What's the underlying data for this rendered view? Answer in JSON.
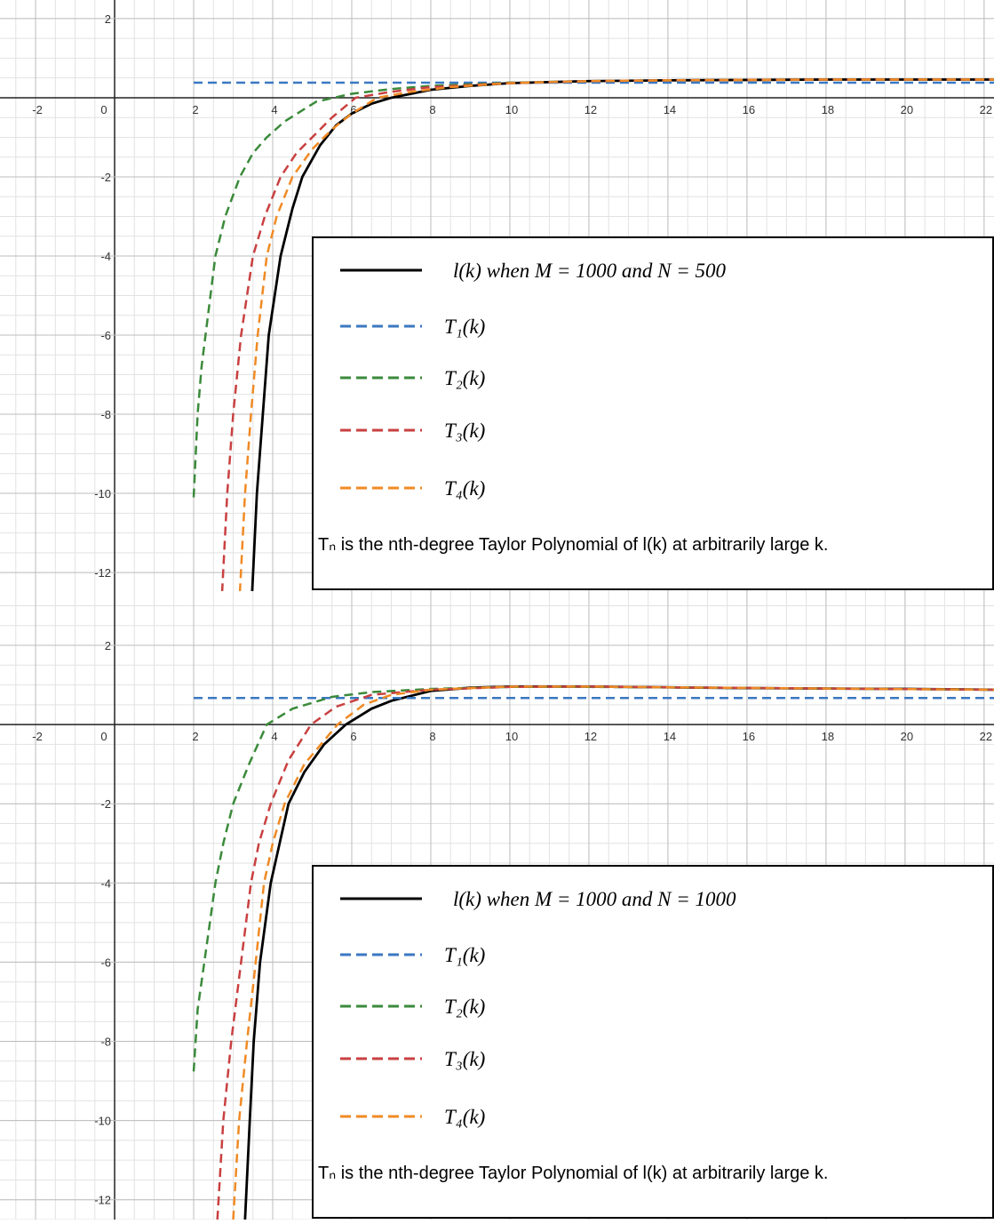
{
  "chart_data": [
    {
      "type": "line",
      "xlim": [
        -2.9,
        22.25
      ],
      "ylim": [
        -12.47,
        2.47
      ],
      "xticks": [
        -2,
        0,
        2,
        4,
        6,
        8,
        10,
        12,
        14,
        16,
        18,
        20,
        22
      ],
      "yticks": [
        -12,
        -10,
        -8,
        -6,
        -4,
        -2,
        0,
        2
      ],
      "grid": true,
      "minor_grid_step": 0.5,
      "legend": "lower right",
      "note": "Tₙ is the nth-degree Taylor Polynomial of l(k) at arbitrarily large k.",
      "series": [
        {
          "name": "l(k) when M = 1000 and N = 500",
          "color": "#000000",
          "dashed": false,
          "x": [
            3.48,
            3.6,
            3.75,
            3.9,
            4.2,
            4.5,
            4.75,
            5.2,
            5.6,
            6,
            6.5,
            7,
            8,
            9,
            10,
            12,
            14,
            16,
            18,
            20,
            22.3
          ],
          "values": [
            -12.5,
            -10,
            -8,
            -6,
            -4,
            -2.8,
            -2,
            -1.2,
            -0.7,
            -0.4,
            -0.15,
            0,
            0.2,
            0.3,
            0.37,
            0.42,
            0.44,
            0.45,
            0.46,
            0.46,
            0.46
          ]
        },
        {
          "name": "T₁(k)",
          "color": "#3a78c2",
          "dashed": true,
          "x": [
            2,
            22.3
          ],
          "values": [
            0.38,
            0.38
          ]
        },
        {
          "name": "T₂(k)",
          "color": "#3a8a3a",
          "dashed": true,
          "x": [
            2,
            2.1,
            2.2,
            2.3,
            2.55,
            2.8,
            3.17,
            3.5,
            3.85,
            4.3,
            5.1,
            6,
            7,
            8,
            10,
            12,
            14,
            18,
            22.3
          ],
          "values": [
            -10.1,
            -8,
            -6.8,
            -6,
            -4,
            -3,
            -2,
            -1.4,
            -1,
            -0.6,
            -0.1,
            0.1,
            0.22,
            0.3,
            0.38,
            0.42,
            0.44,
            0.46,
            0.46
          ]
        },
        {
          "name": "T₃(k)",
          "color": "#c94040",
          "dashed": true,
          "x": [
            2.72,
            2.85,
            3.0,
            3.2,
            3.5,
            3.8,
            4.2,
            4.6,
            5,
            5.5,
            6.1,
            7,
            8,
            10,
            12,
            14,
            18,
            22.3
          ],
          "values": [
            -12.5,
            -10,
            -8,
            -6,
            -4,
            -3,
            -2,
            -1.4,
            -1,
            -0.5,
            0,
            0.15,
            0.27,
            0.37,
            0.42,
            0.44,
            0.46,
            0.46
          ]
        },
        {
          "name": "T₄(k)",
          "color": "#f08a24",
          "dashed": true,
          "x": [
            3.17,
            3.3,
            3.45,
            3.62,
            3.85,
            4.1,
            4.5,
            5,
            5.5,
            6,
            6.65,
            7.5,
            8.5,
            10,
            12,
            14,
            18,
            22.3
          ],
          "values": [
            -12.5,
            -10,
            -8,
            -6,
            -4,
            -3,
            -2,
            -1.3,
            -0.8,
            -0.4,
            0,
            0.15,
            0.27,
            0.37,
            0.42,
            0.44,
            0.46,
            0.46
          ]
        }
      ]
    },
    {
      "type": "line",
      "xlim": [
        -2.9,
        22.25
      ],
      "ylim": [
        -12.5,
        3.37
      ],
      "xticks": [
        -2,
        0,
        2,
        4,
        6,
        8,
        10,
        12,
        14,
        16,
        18,
        20,
        22
      ],
      "yticks": [
        -12,
        -10,
        -8,
        -6,
        -4,
        -2,
        0,
        2
      ],
      "grid": true,
      "minor_grid_step": 0.5,
      "legend": "lower right",
      "note": "Tₙ is the nth-degree Taylor Polynomial of l(k) at arbitrarily large k.",
      "series": [
        {
          "name": "l(k) when M = 1000 and N = 1000",
          "color": "#000000",
          "dashed": false,
          "x": [
            3.3,
            3.42,
            3.52,
            3.68,
            3.95,
            4.4,
            4.8,
            5.3,
            5.85,
            6.5,
            7,
            8,
            9,
            10,
            12,
            14,
            16,
            18,
            20,
            22.3
          ],
          "values": [
            -12.5,
            -10,
            -8,
            -6,
            -4,
            -2,
            -1.2,
            -0.5,
            0,
            0.4,
            0.6,
            0.85,
            0.93,
            0.96,
            0.96,
            0.94,
            0.92,
            0.91,
            0.9,
            0.88
          ]
        },
        {
          "name": "T₁(k)",
          "color": "#3a78c2",
          "dashed": true,
          "x": [
            2,
            22.3
          ],
          "values": [
            0.67,
            0.67
          ]
        },
        {
          "name": "T₂(k)",
          "color": "#3a8a3a",
          "dashed": true,
          "x": [
            2,
            2.1,
            2.27,
            2.55,
            2.75,
            3.0,
            3.4,
            3.85,
            4.5,
            5.5,
            6.5,
            8,
            10,
            12,
            14,
            18,
            22.3
          ],
          "values": [
            -8.76,
            -7.2,
            -6,
            -4,
            -3,
            -2,
            -1,
            0,
            0.4,
            0.7,
            0.82,
            0.9,
            0.95,
            0.95,
            0.94,
            0.91,
            0.88
          ]
        },
        {
          "name": "T₃(k)",
          "color": "#c94040",
          "dashed": true,
          "x": [
            2.6,
            2.75,
            2.95,
            3.2,
            3.45,
            3.65,
            3.95,
            4.4,
            4.97,
            5.6,
            6.5,
            8,
            10,
            12,
            14,
            18,
            22.3
          ],
          "values": [
            -12.5,
            -10,
            -8,
            -6,
            -4,
            -3,
            -2,
            -0.9,
            0,
            0.45,
            0.75,
            0.88,
            0.95,
            0.96,
            0.94,
            0.91,
            0.88
          ]
        },
        {
          "name": "T₄(k)",
          "color": "#f08a24",
          "dashed": true,
          "x": [
            3.0,
            3.15,
            3.35,
            3.57,
            3.78,
            4.0,
            4.3,
            4.8,
            5.64,
            6.3,
            7,
            8,
            10,
            12,
            14,
            18,
            22.3
          ],
          "values": [
            -12.5,
            -10,
            -8,
            -6,
            -4,
            -3,
            -2,
            -1,
            0,
            0.5,
            0.75,
            0.88,
            0.96,
            0.96,
            0.94,
            0.91,
            0.88
          ]
        }
      ]
    }
  ]
}
